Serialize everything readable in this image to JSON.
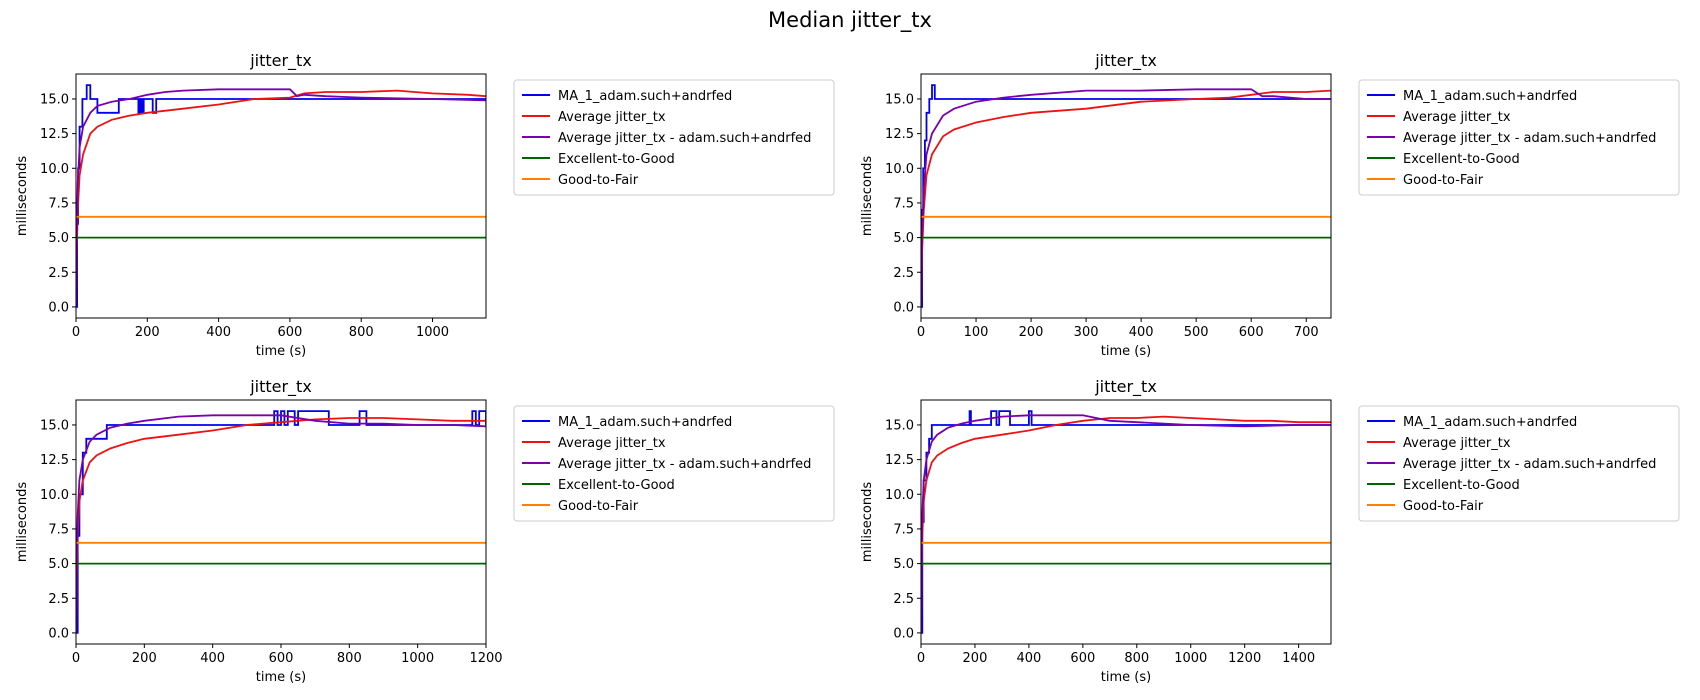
{
  "figure": {
    "suptitle": "Median jitter_tx"
  },
  "colors": {
    "ma": "#0000ee",
    "avg": "#ee1111",
    "avg_user": "#7a00aa",
    "excellent_good": "#006400",
    "good_fair": "#ff8000",
    "grid_frame": "#000000"
  },
  "chart_data": [
    {
      "type": "line",
      "title": "jitter_tx",
      "xlabel": "time (s)",
      "ylabel": "milliseconds",
      "xlim": [
        0,
        1150
      ],
      "ylim": [
        -0.8,
        16.8
      ],
      "xticks": [
        0,
        200,
        400,
        600,
        800,
        1000
      ],
      "xtick_labels": [
        "0",
        "200",
        "400",
        "600",
        "800",
        "1000"
      ],
      "yticks": [
        0.0,
        2.5,
        5.0,
        7.5,
        10.0,
        12.5,
        15.0
      ],
      "ytick_labels": [
        "0.0",
        "2.5",
        "5.0",
        "7.5",
        "10.0",
        "12.5",
        "15.0"
      ],
      "grid": false,
      "legend_position": "outside-right",
      "series": [
        {
          "name": "MA_1_adam.such+andrfed",
          "color": "#0000ee",
          "step": true,
          "x": [
            0,
            3,
            6,
            10,
            18,
            30,
            40,
            60,
            120,
            175,
            180,
            185,
            190,
            215,
            225,
            1150
          ],
          "y": [
            0,
            6,
            10,
            13,
            15,
            16,
            15,
            14,
            15,
            14,
            15,
            14,
            15,
            14,
            15,
            15
          ]
        },
        {
          "name": "Average jitter_tx",
          "color": "#ee1111",
          "x": [
            0,
            2,
            5,
            10,
            20,
            40,
            60,
            100,
            150,
            200,
            300,
            400,
            500,
            600,
            640,
            700,
            800,
            900,
            1000,
            1100,
            1150
          ],
          "y": [
            0,
            4,
            7,
            9.5,
            11,
            12.5,
            13,
            13.5,
            13.8,
            14,
            14.3,
            14.6,
            15,
            15.1,
            15.4,
            15.5,
            15.5,
            15.6,
            15.4,
            15.3,
            15.2
          ]
        },
        {
          "name": "Average jitter_tx - adam.such+andrfed",
          "color": "#7a00aa",
          "x": [
            0,
            2,
            5,
            10,
            20,
            40,
            60,
            100,
            150,
            200,
            250,
            300,
            400,
            500,
            600,
            620,
            640,
            700,
            800,
            1000,
            1150
          ],
          "y": [
            0,
            5,
            9,
            11.5,
            13,
            14,
            14.5,
            14.8,
            15,
            15.3,
            15.5,
            15.6,
            15.7,
            15.7,
            15.7,
            15.2,
            15.3,
            15.2,
            15.1,
            15.0,
            14.9
          ]
        },
        {
          "name": "Excellent-to-Good",
          "color": "#006400",
          "x": [
            0,
            1150
          ],
          "y": [
            5,
            5
          ]
        },
        {
          "name": "Good-to-Fair",
          "color": "#ff8000",
          "x": [
            0,
            1150
          ],
          "y": [
            6.5,
            6.5
          ]
        }
      ]
    },
    {
      "type": "line",
      "title": "jitter_tx",
      "xlabel": "time (s)",
      "ylabel": "milliseconds",
      "xlim": [
        0,
        745
      ],
      "ylim": [
        -0.8,
        16.8
      ],
      "xticks": [
        0,
        100,
        200,
        300,
        400,
        500,
        600,
        700
      ],
      "xtick_labels": [
        "0",
        "100",
        "200",
        "300",
        "400",
        "500",
        "600",
        "700"
      ],
      "yticks": [
        0.0,
        2.5,
        5.0,
        7.5,
        10.0,
        12.5,
        15.0
      ],
      "ytick_labels": [
        "0.0",
        "2.5",
        "5.0",
        "7.5",
        "10.0",
        "12.5",
        "15.0"
      ],
      "grid": false,
      "legend_position": "outside-right",
      "series": [
        {
          "name": "MA_1_adam.such+andrfed",
          "color": "#0000ee",
          "step": true,
          "x": [
            0,
            2,
            4,
            7,
            10,
            15,
            20,
            25,
            745
          ],
          "y": [
            0,
            7,
            10,
            12,
            14,
            15,
            16,
            15,
            15
          ]
        },
        {
          "name": "Average jitter_tx",
          "color": "#ee1111",
          "x": [
            0,
            2,
            5,
            10,
            20,
            40,
            60,
            100,
            150,
            200,
            300,
            400,
            500,
            560,
            600,
            640,
            700,
            745
          ],
          "y": [
            0,
            4,
            7,
            9.5,
            11,
            12.3,
            12.8,
            13.3,
            13.7,
            14,
            14.3,
            14.8,
            15,
            15.1,
            15.3,
            15.5,
            15.5,
            15.6
          ]
        },
        {
          "name": "Average jitter_tx - adam.such+andrfed",
          "color": "#7a00aa",
          "x": [
            0,
            2,
            5,
            10,
            20,
            40,
            60,
            100,
            150,
            200,
            300,
            400,
            500,
            600,
            620,
            640,
            700,
            745
          ],
          "y": [
            0,
            5,
            8.5,
            11,
            12.5,
            13.8,
            14.3,
            14.8,
            15.1,
            15.3,
            15.6,
            15.6,
            15.7,
            15.7,
            15.2,
            15.2,
            15.0,
            15.0
          ]
        },
        {
          "name": "Excellent-to-Good",
          "color": "#006400",
          "x": [
            0,
            745
          ],
          "y": [
            5,
            5
          ]
        },
        {
          "name": "Good-to-Fair",
          "color": "#ff8000",
          "x": [
            0,
            745
          ],
          "y": [
            6.5,
            6.5
          ]
        }
      ]
    },
    {
      "type": "line",
      "title": "jitter_tx",
      "xlabel": "time (s)",
      "ylabel": "milliseconds",
      "xlim": [
        0,
        1200
      ],
      "ylim": [
        -0.8,
        16.8
      ],
      "xticks": [
        0,
        200,
        400,
        600,
        800,
        1000,
        1200
      ],
      "xtick_labels": [
        "0",
        "200",
        "400",
        "600",
        "800",
        "1000",
        "1200"
      ],
      "yticks": [
        0.0,
        2.5,
        5.0,
        7.5,
        10.0,
        12.5,
        15.0
      ],
      "ytick_labels": [
        "0.0",
        "2.5",
        "5.0",
        "7.5",
        "10.0",
        "12.5",
        "15.0"
      ],
      "grid": false,
      "legend_position": "outside-right",
      "series": [
        {
          "name": "MA_1_adam.such+andrfed",
          "color": "#0000ee",
          "step": true,
          "x": [
            0,
            5,
            10,
            20,
            30,
            50,
            90,
            580,
            590,
            600,
            610,
            620,
            640,
            650,
            660,
            740,
            800,
            830,
            850,
            1160,
            1170,
            1180,
            1200
          ],
          "y": [
            0,
            7,
            10,
            13,
            14,
            14,
            15,
            16,
            15,
            16,
            15,
            16,
            15,
            16,
            16,
            15,
            15,
            16,
            15,
            16,
            15,
            16,
            15
          ]
        },
        {
          "name": "Average jitter_tx",
          "color": "#ee1111",
          "x": [
            0,
            2,
            5,
            10,
            20,
            40,
            60,
            100,
            150,
            200,
            300,
            400,
            500,
            600,
            700,
            800,
            900,
            1000,
            1100,
            1200
          ],
          "y": [
            0,
            4,
            7,
            9.5,
            11,
            12.3,
            12.8,
            13.3,
            13.7,
            14,
            14.3,
            14.6,
            15,
            15.2,
            15.4,
            15.5,
            15.5,
            15.4,
            15.3,
            15.3
          ]
        },
        {
          "name": "Average jitter_tx - adam.such+andrfed",
          "color": "#7a00aa",
          "x": [
            0,
            2,
            5,
            10,
            20,
            40,
            60,
            100,
            150,
            200,
            300,
            400,
            500,
            600,
            700,
            800,
            900,
            1000,
            1100,
            1200
          ],
          "y": [
            0,
            5,
            8.5,
            11,
            12.5,
            13.8,
            14.3,
            14.8,
            15.1,
            15.3,
            15.6,
            15.7,
            15.7,
            15.7,
            15.3,
            15.1,
            15.1,
            15.0,
            15.0,
            14.9
          ]
        },
        {
          "name": "Excellent-to-Good",
          "color": "#006400",
          "x": [
            0,
            1200
          ],
          "y": [
            5,
            5
          ]
        },
        {
          "name": "Good-to-Fair",
          "color": "#ff8000",
          "x": [
            0,
            1200
          ],
          "y": [
            6.5,
            6.5
          ]
        }
      ]
    },
    {
      "type": "line",
      "title": "jitter_tx",
      "xlabel": "time (s)",
      "ylabel": "milliseconds",
      "xlim": [
        0,
        1520
      ],
      "ylim": [
        -0.8,
        16.8
      ],
      "xticks": [
        0,
        200,
        400,
        600,
        800,
        1000,
        1200,
        1400
      ],
      "xtick_labels": [
        "0",
        "200",
        "400",
        "600",
        "800",
        "1000",
        "1200",
        "1400"
      ],
      "yticks": [
        0.0,
        2.5,
        5.0,
        7.5,
        10.0,
        12.5,
        15.0
      ],
      "ytick_labels": [
        "0.0",
        "2.5",
        "5.0",
        "7.5",
        "10.0",
        "12.5",
        "15.0"
      ],
      "grid": false,
      "legend_position": "outside-right",
      "series": [
        {
          "name": "MA_1_adam.such+andrfed",
          "color": "#0000ee",
          "step": true,
          "x": [
            0,
            5,
            10,
            20,
            30,
            40,
            180,
            185,
            190,
            260,
            280,
            290,
            300,
            330,
            400,
            410,
            420,
            1520
          ],
          "y": [
            0,
            8,
            11,
            13,
            14,
            15,
            16,
            15,
            15,
            16,
            15,
            16,
            16,
            15,
            16,
            15,
            15,
            15
          ]
        },
        {
          "name": "Average jitter_tx",
          "color": "#ee1111",
          "x": [
            0,
            2,
            5,
            10,
            20,
            40,
            60,
            100,
            150,
            200,
            300,
            400,
            500,
            600,
            700,
            800,
            900,
            1000,
            1100,
            1200,
            1300,
            1400,
            1520
          ],
          "y": [
            0,
            4,
            7,
            9.5,
            11,
            12.3,
            12.8,
            13.3,
            13.7,
            14,
            14.3,
            14.6,
            15,
            15.3,
            15.5,
            15.5,
            15.6,
            15.5,
            15.4,
            15.3,
            15.3,
            15.2,
            15.2
          ]
        },
        {
          "name": "Average jitter_tx - adam.such+andrfed",
          "color": "#7a00aa",
          "x": [
            0,
            2,
            5,
            10,
            20,
            40,
            60,
            100,
            150,
            200,
            300,
            400,
            500,
            600,
            700,
            800,
            1000,
            1200,
            1400,
            1520
          ],
          "y": [
            0,
            5,
            8.5,
            11,
            12.5,
            13.8,
            14.3,
            14.8,
            15.1,
            15.3,
            15.6,
            15.7,
            15.7,
            15.7,
            15.3,
            15.2,
            15.0,
            14.9,
            15.0,
            15.0
          ]
        },
        {
          "name": "Excellent-to-Good",
          "color": "#006400",
          "x": [
            0,
            1520
          ],
          "y": [
            5,
            5
          ]
        },
        {
          "name": "Good-to-Fair",
          "color": "#ff8000",
          "x": [
            0,
            1520
          ],
          "y": [
            6.5,
            6.5
          ]
        }
      ]
    }
  ]
}
